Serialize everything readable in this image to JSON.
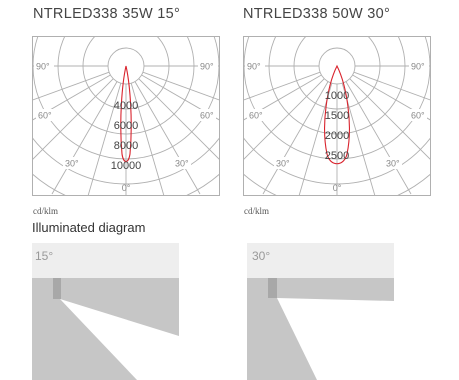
{
  "diagrams": [
    {
      "title": "NTRLED338 35W 15°",
      "unit": "cd/klm",
      "angle_labels": [
        "90°",
        "90°",
        "60°",
        "60°",
        "30°",
        "30°",
        "0°"
      ],
      "intensity_labels": [
        "4000",
        "6000",
        "8000",
        "10000"
      ]
    },
    {
      "title": "NTRLED338 50W 30°",
      "unit": "cd/klm",
      "angle_labels": [
        "90°",
        "90°",
        "60°",
        "60°",
        "30°",
        "30°",
        "0°"
      ],
      "intensity_labels": [
        "1000",
        "1500",
        "2000",
        "2500"
      ]
    }
  ],
  "illuminated": {
    "heading": "Illuminated diagram",
    "panels": [
      {
        "label": "15°"
      },
      {
        "label": "30°"
      }
    ]
  },
  "colors": {
    "curve": "#d9232d",
    "grid": "#b0b0b0",
    "sky": "#eeeeee",
    "wall": "#c6c6c6",
    "fixture": "#a8a8a8",
    "beam": "#ffffff"
  }
}
